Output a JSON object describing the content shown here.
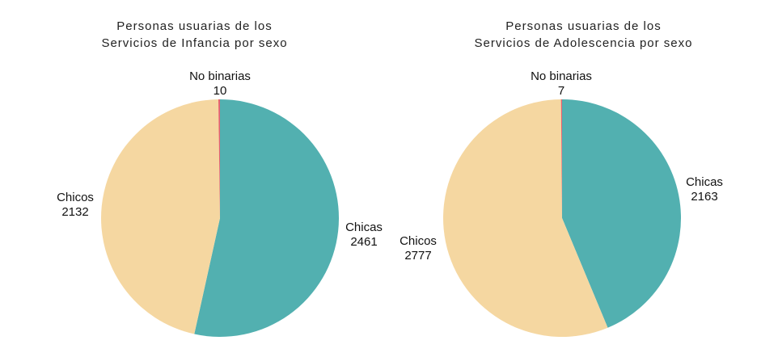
{
  "colors": {
    "chicas": "#52b0b0",
    "chicos": "#f5d7a1",
    "no_binarias": "#e8606e"
  },
  "chart_data": [
    {
      "type": "pie",
      "title": "Personas usuarias de los\nServicios de Infancia por sexo",
      "title_lines": [
        "Personas usuarias de los",
        "Servicios de Infancia por sexo"
      ],
      "slices": [
        {
          "label": "Chicas",
          "value": 2461,
          "color": "#52b0b0"
        },
        {
          "label": "Chicos",
          "value": 2132,
          "color": "#f5d7a1"
        },
        {
          "label": "No binarias",
          "value": 10,
          "color": "#e8606e"
        }
      ]
    },
    {
      "type": "pie",
      "title": "Personas usuarias de los\nServicios de Adolescencia por sexo",
      "title_lines": [
        "Personas usuarias de los",
        "Servicios de Adolescencia por sexo"
      ],
      "slices": [
        {
          "label": "Chicas",
          "value": 2163,
          "color": "#52b0b0"
        },
        {
          "label": "Chicos",
          "value": 2777,
          "color": "#f5d7a1"
        },
        {
          "label": "No binarias",
          "value": 7,
          "color": "#e8606e"
        }
      ]
    }
  ]
}
